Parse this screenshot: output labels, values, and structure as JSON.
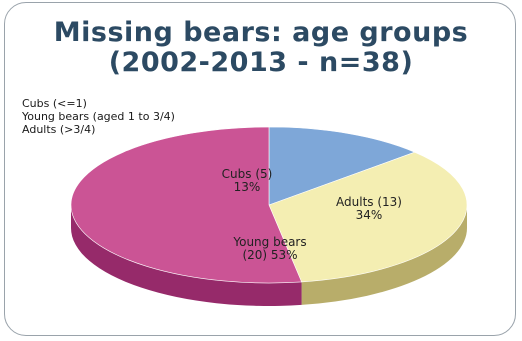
{
  "chart_data": {
    "type": "pie",
    "title": "Missing bears: age groups\n(2002-2013 - n=38)",
    "title_lines": [
      "Missing bears: age groups",
      "(2002-2013 - n=38)"
    ],
    "legend": [
      "Cubs (<=1)",
      "Young bears (aged 1 to 3/4)",
      "Adults (>3/4)"
    ],
    "legend_placement": "top-left",
    "slices": [
      {
        "name": "Cubs",
        "value": 5,
        "percent": 13,
        "color": "#7ea7d8",
        "side_color": "#5a7fae",
        "label_lines": [
          "Cubs (5)",
          "13%"
        ]
      },
      {
        "name": "Adults",
        "value": 13,
        "percent": 34,
        "color": "#f4eeb2",
        "side_color": "#b8ad6a",
        "label_lines": [
          "Adults (13)",
          "34%"
        ]
      },
      {
        "name": "Young bears",
        "value": 20,
        "percent": 53,
        "color": "#cb5495",
        "side_color": "#962a6a",
        "label_lines": [
          "Young bears",
          "(20) 53%"
        ]
      }
    ]
  }
}
